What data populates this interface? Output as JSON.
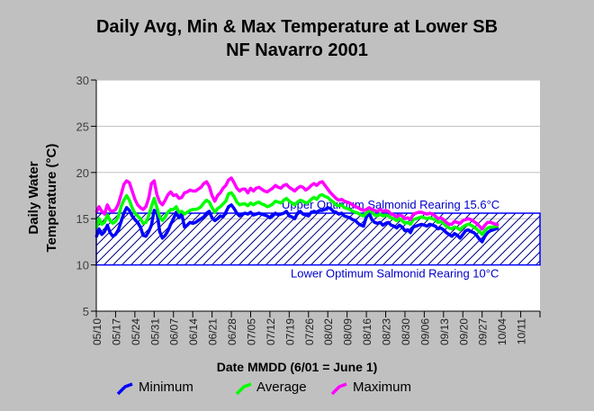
{
  "chart_data": {
    "type": "line",
    "title_line1": "Daily Avg, Min & Max Temperature at Lower SB",
    "title_line2": "NF Navarro 2001",
    "ylabel_line1": "Daily Water",
    "ylabel_line2": "Temperature (°C)",
    "xlabel": "Date MMDD (6/01 = June 1)",
    "ylim": [
      5,
      30
    ],
    "yticks": [
      "5",
      "10",
      "15",
      "20",
      "25",
      "30"
    ],
    "x_ticks": [
      "05/10",
      "05/17",
      "05/24",
      "05/31",
      "06/07",
      "06/14",
      "06/21",
      "06/28",
      "07/05",
      "07/12",
      "07/19",
      "07/26",
      "08/02",
      "08/09",
      "08/16",
      "08/23",
      "08/30",
      "09/06",
      "09/13",
      "09/20",
      "09/27",
      "10/04",
      "10/11"
    ],
    "grid": "horizontal",
    "band": {
      "upper": 15.6,
      "lower": 10,
      "upper_label": "Upper Optimum Salmonid Rearing 15.6°C",
      "lower_label": "Lower Optimum Salmonid Rearing 10°C"
    },
    "series": [
      {
        "name": "Minimum",
        "color": "#0000ff",
        "values": [
          13.0,
          13.9,
          13.3,
          13.6,
          14.3,
          13.5,
          13.1,
          13.3,
          13.8,
          14.7,
          15.6,
          16.2,
          15.9,
          15.3,
          14.9,
          14.6,
          14.1,
          13.2,
          13.1,
          13.6,
          14.3,
          15.9,
          15.8,
          13.6,
          12.9,
          13.2,
          13.7,
          14.4,
          15.0,
          15.7,
          15.1,
          15.5,
          14.1,
          14.3,
          14.6,
          14.5,
          14.6,
          14.8,
          15.0,
          15.2,
          15.6,
          15.8,
          15.1,
          14.8,
          15.0,
          15.3,
          15.2,
          15.7,
          16.3,
          16.5,
          16.1,
          15.6,
          15.3,
          15.5,
          15.6,
          15.5,
          15.7,
          15.4,
          15.5,
          15.6,
          15.5,
          15.4,
          15.3,
          15.1,
          15.3,
          15.6,
          15.4,
          15.5,
          15.6,
          15.8,
          15.3,
          15.2,
          15.0,
          15.6,
          15.8,
          15.5,
          15.4,
          15.3,
          15.7,
          15.8,
          15.7,
          15.9,
          15.9,
          16.0,
          16.2,
          16.1,
          15.8,
          15.7,
          15.5,
          15.6,
          15.3,
          15.2,
          15.1,
          14.9,
          14.8,
          14.5,
          14.3,
          14.2,
          15.2,
          15.6,
          14.9,
          14.6,
          14.5,
          14.6,
          14.3,
          14.5,
          14.6,
          14.3,
          14.2,
          14.0,
          14.3,
          14.1,
          13.7,
          13.8,
          13.5,
          14.1,
          14.2,
          14.3,
          14.4,
          14.3,
          14.2,
          14.4,
          14.3,
          14.2,
          13.9,
          14.0,
          13.8,
          13.5,
          13.3,
          13.1,
          13.4,
          13.2,
          12.9,
          13.3,
          13.7,
          13.8,
          13.6,
          13.5,
          13.2,
          12.8,
          12.5,
          13.1,
          13.5,
          13.7,
          13.8,
          13.9,
          14.0
        ]
      },
      {
        "name": "Average",
        "color": "#00ff00",
        "values": [
          14.0,
          15.0,
          14.4,
          14.6,
          15.4,
          14.8,
          14.5,
          14.7,
          15.2,
          16.3,
          17.0,
          17.5,
          17.0,
          16.2,
          15.6,
          15.3,
          15.0,
          14.5,
          14.6,
          15.3,
          16.3,
          17.2,
          16.2,
          15.2,
          14.8,
          15.2,
          15.7,
          16.0,
          16.0,
          16.3,
          15.7,
          15.8,
          15.5,
          15.7,
          15.9,
          16.0,
          16.0,
          16.1,
          16.3,
          16.7,
          17.0,
          16.8,
          16.2,
          15.7,
          16.1,
          16.3,
          16.6,
          16.9,
          17.7,
          17.8,
          17.4,
          16.8,
          16.5,
          16.6,
          16.6,
          16.4,
          16.7,
          16.5,
          16.7,
          16.8,
          16.6,
          16.5,
          16.3,
          16.4,
          16.6,
          16.9,
          16.8,
          16.7,
          17.0,
          17.2,
          16.9,
          16.7,
          16.5,
          16.8,
          17.0,
          16.9,
          16.7,
          16.8,
          17.1,
          17.3,
          17.1,
          17.5,
          17.6,
          17.4,
          17.3,
          17.0,
          16.8,
          16.5,
          16.4,
          16.5,
          16.2,
          16.1,
          16.0,
          15.8,
          15.7,
          15.6,
          15.4,
          15.3,
          15.6,
          15.9,
          15.7,
          15.4,
          15.3,
          15.5,
          15.3,
          15.4,
          15.3,
          15.1,
          15.0,
          14.8,
          15.0,
          14.8,
          14.5,
          14.6,
          14.4,
          14.9,
          15.0,
          15.1,
          15.2,
          15.1,
          15.0,
          15.1,
          15.0,
          14.9,
          14.6,
          14.7,
          14.5,
          14.2,
          14.0,
          13.9,
          14.1,
          14.0,
          13.8,
          14.1,
          14.3,
          14.4,
          14.3,
          14.1,
          13.9,
          13.6,
          13.3,
          13.7,
          14.0,
          14.1,
          14.1,
          14.2,
          14.2
        ]
      },
      {
        "name": "Maximum",
        "color": "#ff00ff",
        "values": [
          15.7,
          16.3,
          15.8,
          15.5,
          16.5,
          15.9,
          15.8,
          16.0,
          16.6,
          17.6,
          18.7,
          19.1,
          18.9,
          18.0,
          17.1,
          16.5,
          16.2,
          16.0,
          16.3,
          17.2,
          18.8,
          19.1,
          17.6,
          16.8,
          16.5,
          17.0,
          17.6,
          17.9,
          17.5,
          17.6,
          17.2,
          17.3,
          17.8,
          17.9,
          18.1,
          18.0,
          18.0,
          18.2,
          18.4,
          18.8,
          19.0,
          18.5,
          17.5,
          16.9,
          17.5,
          17.8,
          18.3,
          18.6,
          19.2,
          19.4,
          18.9,
          18.3,
          18.0,
          18.2,
          18.2,
          17.8,
          18.3,
          18.0,
          18.3,
          18.4,
          18.2,
          18.0,
          17.9,
          18.1,
          18.3,
          18.6,
          18.4,
          18.3,
          18.6,
          18.7,
          18.4,
          18.2,
          18.0,
          18.3,
          18.5,
          18.4,
          18.1,
          18.3,
          18.6,
          18.8,
          18.6,
          18.9,
          19.0,
          18.6,
          18.2,
          17.8,
          17.5,
          17.2,
          17.0,
          17.1,
          16.9,
          16.8,
          16.7,
          16.5,
          16.3,
          16.2,
          16.0,
          15.9,
          16.0,
          16.2,
          16.0,
          15.9,
          15.8,
          16.0,
          15.8,
          15.9,
          15.8,
          15.5,
          15.4,
          15.2,
          15.4,
          15.3,
          15.0,
          15.1,
          14.9,
          15.5,
          15.6,
          15.7,
          15.7,
          15.6,
          15.5,
          15.6,
          15.5,
          15.3,
          15.0,
          15.1,
          14.9,
          14.6,
          14.4,
          14.4,
          14.7,
          14.6,
          14.5,
          14.8,
          14.9,
          15.0,
          14.9,
          14.7,
          14.5,
          14.2,
          13.9,
          14.3,
          14.6,
          14.6,
          14.5,
          14.4,
          14.3
        ]
      }
    ]
  }
}
